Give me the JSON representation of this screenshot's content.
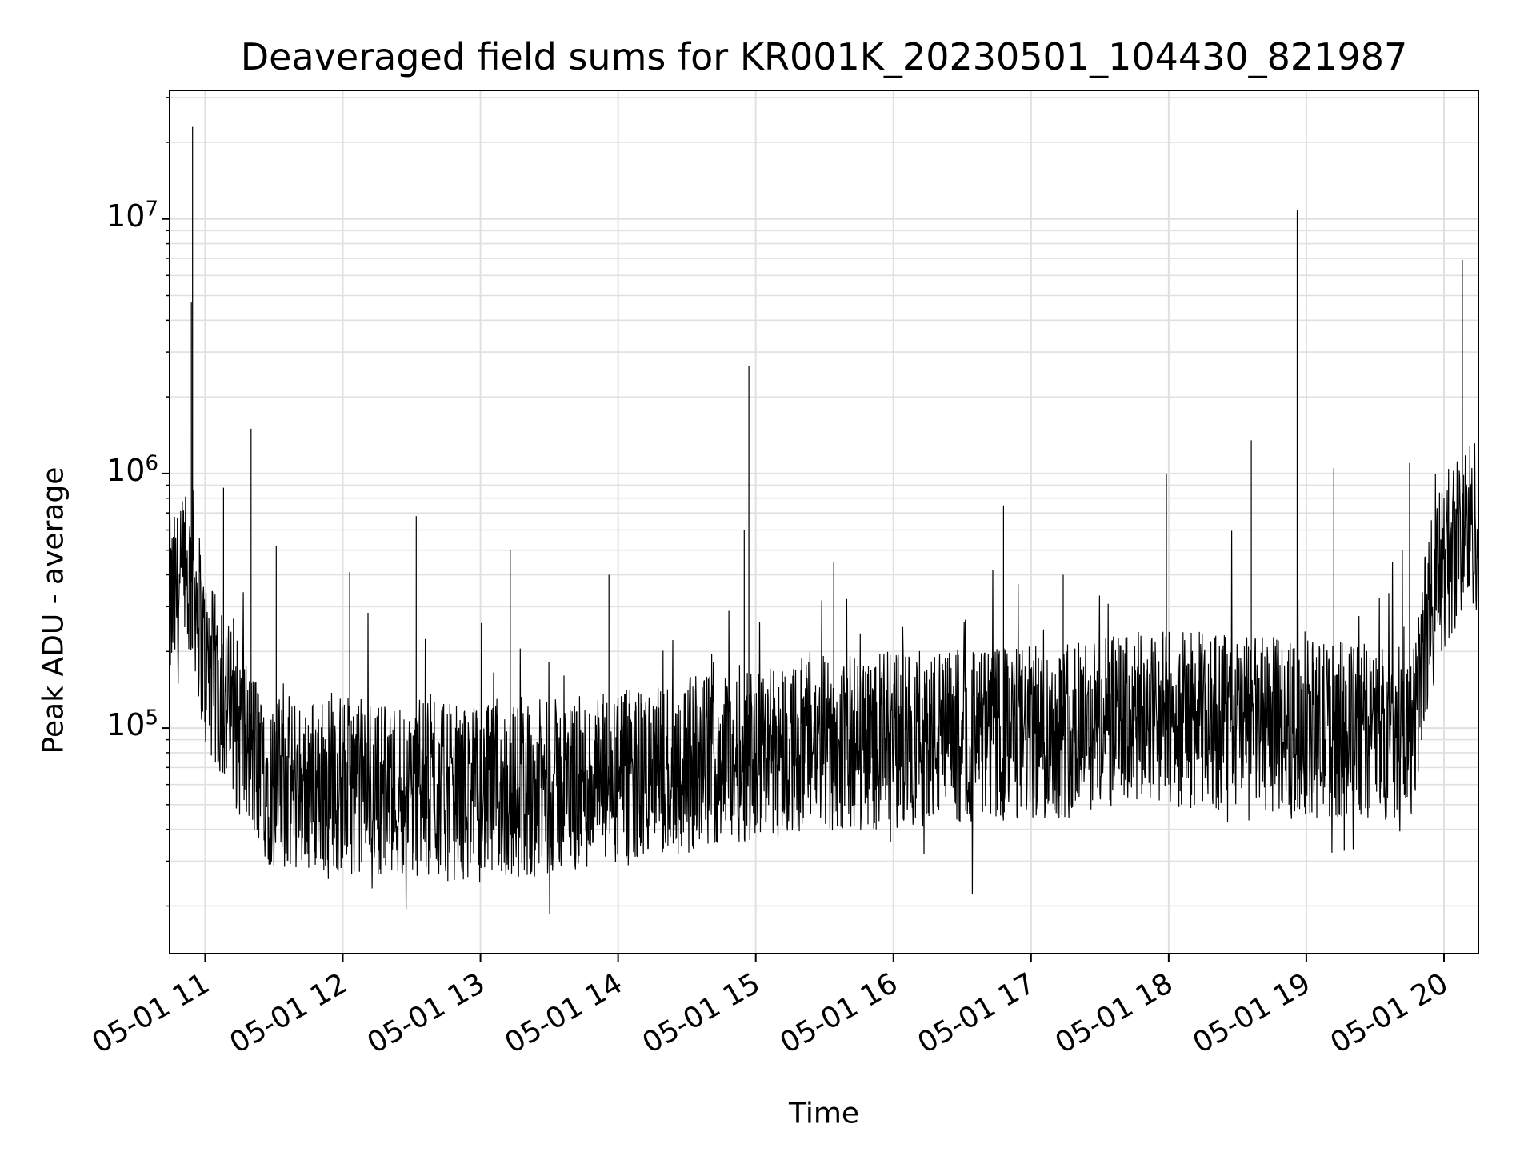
{
  "chart_data": {
    "type": "line",
    "title": "Deaveraged field sums for KR001K_20230501_104430_821987",
    "xlabel": "Time",
    "ylabel": "Peak ADU - average",
    "x_ticks": [
      "05-01 11",
      "05-01 12",
      "05-01 13",
      "05-01 14",
      "05-01 15",
      "05-01 16",
      "05-01 17",
      "05-01 18",
      "05-01 19",
      "05-01 20"
    ],
    "y_ticks": [
      {
        "base": "10",
        "exp": "5",
        "value": 100000
      },
      {
        "base": "10",
        "exp": "6",
        "value": 1000000
      },
      {
        "base": "10",
        "exp": "7",
        "value": 10000000
      }
    ],
    "y_scale": "log",
    "ylim": [
      13000,
      32000000
    ],
    "xlim": [
      "2023-05-01 10:44:30",
      "2023-05-01 20:15:00"
    ],
    "grid": true,
    "line_color": "#000000",
    "series": [
      {
        "baseline_trend": [
          {
            "x": "2023-05-01 10:45",
            "y": 300000
          },
          {
            "x": "2023-05-01 10:50",
            "y": 350000
          },
          {
            "x": "2023-05-01 10:55",
            "y": 400000
          },
          {
            "x": "2023-05-01 11:00",
            "y": 180000
          },
          {
            "x": "2023-05-01 11:10",
            "y": 120000
          },
          {
            "x": "2023-05-01 11:20",
            "y": 80000
          },
          {
            "x": "2023-05-01 11:30",
            "y": 60000
          },
          {
            "x": "2023-05-01 12:00",
            "y": 60000
          },
          {
            "x": "2023-05-01 13:00",
            "y": 55000
          },
          {
            "x": "2023-05-01 14:00",
            "y": 62000
          },
          {
            "x": "2023-05-01 15:00",
            "y": 82000
          },
          {
            "x": "2023-05-01 16:00",
            "y": 90000
          },
          {
            "x": "2023-05-01 17:00",
            "y": 95000
          },
          {
            "x": "2023-05-01 18:00",
            "y": 110000
          },
          {
            "x": "2023-05-01 19:00",
            "y": 100000
          },
          {
            "x": "2023-05-01 19:47",
            "y": 95000
          },
          {
            "x": "2023-05-01 19:52",
            "y": 250000
          },
          {
            "x": "2023-05-01 20:00",
            "y": 450000
          },
          {
            "x": "2023-05-01 20:08",
            "y": 600000
          },
          {
            "x": "2023-05-01 20:15",
            "y": 650000
          }
        ],
        "spikes": [
          {
            "x": "2023-05-01 10:54:30",
            "y": 23000000
          },
          {
            "x": "2023-05-01 10:54:00",
            "y": 4700000
          },
          {
            "x": "2023-05-01 11:08:00",
            "y": 880000
          },
          {
            "x": "2023-05-01 11:20:00",
            "y": 1500000
          },
          {
            "x": "2023-05-01 11:31:00",
            "y": 440000
          },
          {
            "x": "2023-05-01 11:31:00",
            "y": 520000
          },
          {
            "x": "2023-05-01 12:03:00",
            "y": 410000
          },
          {
            "x": "2023-05-01 12:32:00",
            "y": 680000
          },
          {
            "x": "2023-05-01 13:13:00",
            "y": 500000
          },
          {
            "x": "2023-05-01 13:56:00",
            "y": 400000
          },
          {
            "x": "2023-05-01 14:57:00",
            "y": 2650000
          },
          {
            "x": "2023-05-01 14:55:00",
            "y": 600000
          },
          {
            "x": "2023-05-01 15:34:00",
            "y": 450000
          },
          {
            "x": "2023-05-01 16:48:00",
            "y": 750000
          },
          {
            "x": "2023-05-01 17:14:00",
            "y": 400000
          },
          {
            "x": "2023-05-01 17:59:00",
            "y": 1000000
          },
          {
            "x": "2023-05-01 18:36:00",
            "y": 1350000
          },
          {
            "x": "2023-05-01 18:56:00",
            "y": 10800000
          },
          {
            "x": "2023-05-01 18:56:00",
            "y": 2900000
          },
          {
            "x": "2023-05-01 19:12:00",
            "y": 1050000
          },
          {
            "x": "2023-05-01 19:45:00",
            "y": 1100000
          },
          {
            "x": "2023-05-01 20:08:00",
            "y": 6900000
          }
        ]
      }
    ]
  }
}
